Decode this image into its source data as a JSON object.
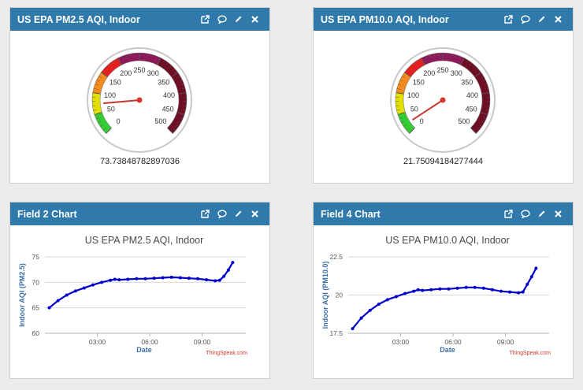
{
  "widgets": [
    {
      "id": "w1",
      "title": "US EPA PM2.5 AQI, Indoor",
      "type": "gauge",
      "value_text": "73.73848782897036",
      "value": 73.73848782897036
    },
    {
      "id": "w2",
      "title": "US EPA PM10.0 AQI, Indoor",
      "type": "gauge",
      "value_text": "21.75094184277444",
      "value": 21.75094184277444
    },
    {
      "id": "w3",
      "title": "Field 2 Chart",
      "type": "chart"
    },
    {
      "id": "w4",
      "title": "Field 4 Chart",
      "type": "chart"
    }
  ],
  "gauge_scale": {
    "min": 0,
    "max": 500,
    "ticks": [
      "0",
      "50",
      "100",
      "150",
      "200",
      "250",
      "300",
      "350",
      "400",
      "450",
      "500"
    ],
    "bands": [
      {
        "from": 0,
        "to": 50,
        "color": "#33cc33"
      },
      {
        "from": 50,
        "to": 100,
        "color": "#e3e000"
      },
      {
        "from": 100,
        "to": 150,
        "color": "#f28a1c"
      },
      {
        "from": 150,
        "to": 200,
        "color": "#e81e1e"
      },
      {
        "from": 200,
        "to": 300,
        "color": "#8c1a5a"
      },
      {
        "from": 300,
        "to": 500,
        "color": "#6e0f25"
      }
    ]
  },
  "chart_data": [
    {
      "type": "line",
      "title": "US EPA PM2.5 AQI, Indoor",
      "xlabel": "Date",
      "ylabel": "Indoor AQI (PM2.5)",
      "ylim": [
        60,
        75
      ],
      "yticks": [
        "75",
        "70",
        "65",
        "60"
      ],
      "xticks": [
        "03:00",
        "06:00",
        "09:00"
      ],
      "credit": "ThingSpeak.com",
      "series_color": "#0000cc",
      "x": [
        "00:15",
        "00:45",
        "01:15",
        "01:45",
        "02:15",
        "02:45",
        "03:15",
        "03:45",
        "04:00",
        "04:15",
        "04:45",
        "05:15",
        "05:45",
        "06:15",
        "06:45",
        "07:15",
        "07:45",
        "08:15",
        "08:45",
        "09:15",
        "09:45",
        "10:00",
        "10:15",
        "10:30",
        "10:45"
      ],
      "y": [
        65.0,
        66.4,
        67.5,
        68.3,
        68.9,
        69.5,
        70.0,
        70.4,
        70.6,
        70.5,
        70.6,
        70.7,
        70.7,
        70.8,
        70.9,
        71.0,
        70.9,
        70.8,
        70.7,
        70.5,
        70.3,
        70.4,
        71.2,
        72.4,
        73.9
      ]
    },
    {
      "type": "line",
      "title": "US EPA PM10.0 AQI, Indoor",
      "xlabel": "Date",
      "ylabel": "Indoor AQI (PM10.0)",
      "ylim": [
        17.5,
        22.5
      ],
      "yticks": [
        "22.5",
        "20",
        "17.5"
      ],
      "xticks": [
        "03:00",
        "06:00",
        "09:00"
      ],
      "credit": "ThingSpeak.com",
      "series_color": "#0000cc",
      "x": [
        "00:15",
        "00:45",
        "01:15",
        "01:45",
        "02:15",
        "02:45",
        "03:15",
        "03:45",
        "04:00",
        "04:15",
        "04:45",
        "05:15",
        "05:45",
        "06:15",
        "06:45",
        "07:15",
        "07:45",
        "08:15",
        "08:45",
        "09:15",
        "09:45",
        "10:00",
        "10:15",
        "10:30",
        "10:45"
      ],
      "y": [
        17.8,
        18.5,
        19.0,
        19.4,
        19.7,
        19.9,
        20.1,
        20.25,
        20.35,
        20.3,
        20.35,
        20.4,
        20.4,
        20.45,
        20.5,
        20.5,
        20.45,
        20.35,
        20.25,
        20.2,
        20.15,
        20.2,
        20.7,
        21.2,
        21.75
      ]
    }
  ]
}
